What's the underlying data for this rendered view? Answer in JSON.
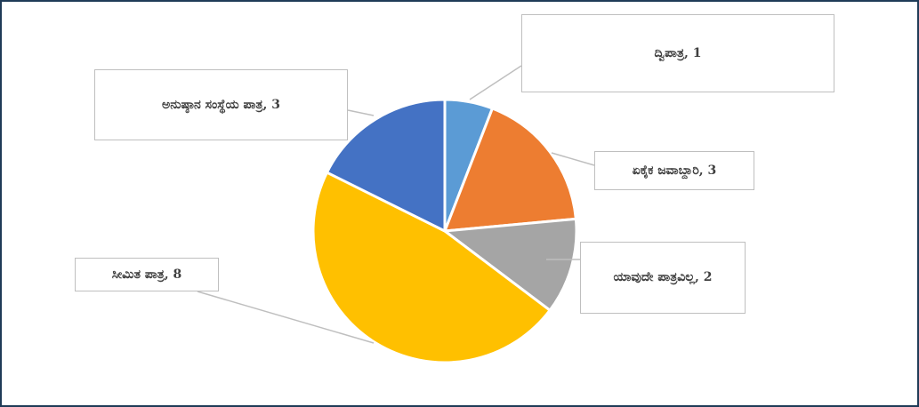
{
  "chart_data": {
    "type": "pie",
    "value_labels": [
      "ದ್ವಿಪಾತ್ರ, 1",
      "ಏಕೈಕ ಜವಾಬ್ದಾರಿ, 3",
      "ಯಾವುದೇ ಪಾತ್ರವಿಲ್ಲ, 2",
      "ಸೀಮಿತ ಪಾತ್ರ, 8",
      "ಅನುಷ್ಠಾನ ಸಂಸ್ಥೆಯ ಪಾತ್ರ, 3"
    ],
    "values": [
      1,
      3,
      2,
      8,
      3
    ],
    "colors": [
      "#5b9bd5",
      "#ed7d31",
      "#a5a5a5",
      "#ffc000",
      "#4472c4"
    ]
  }
}
